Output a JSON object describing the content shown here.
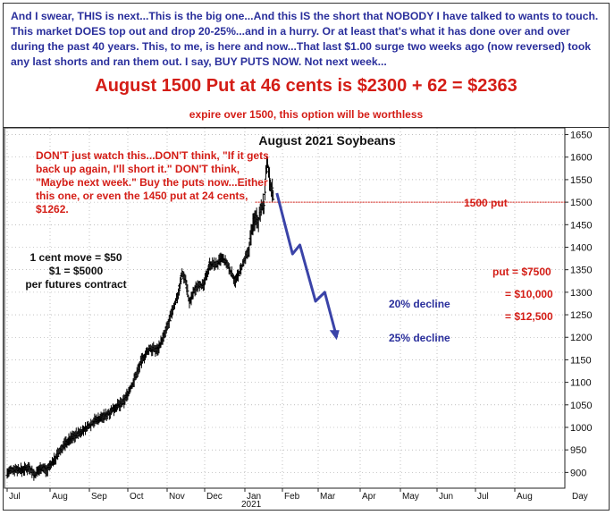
{
  "header": {
    "paragraph": "And I swear, THIS is next...This is the big one...And this IS the short that NOBODY I have talked to wants to touch. This market DOES top out and drop 20-25%...and in a hurry. Or at least that's what it has done over and over during the past 40 years. This, to me, is here and now...That last $1.00 surge two weeks ago (now reversed) took any last shorts and ran them out. I say, BUY PUTS NOW. Not next week...",
    "headline": "August 1500 Put at 46 cents is $2300 + 62 = $2363",
    "subline": "expire over 1500, this option will be worthless"
  },
  "notes": {
    "red": "DON'T just watch this...DON'T think, \"If it gets back up again, I'll short it.\" DON'T think, \"Maybe next week.\" Buy the puts now...Either this one, or even the 1450 put at 24 cents, $1262.",
    "contract_lines": [
      "1 cent move = $50",
      "$1 = $5000",
      "per futures contract"
    ]
  },
  "annotations": {
    "put_line_label": "1500 put",
    "put_value": "put = $7500",
    "value_10k": "= $10,000",
    "value_12_5k": "= $12,500",
    "decline_20": "20% decline",
    "decline_25": "25% decline"
  },
  "colors": {
    "header_text": "#2a2f9c",
    "red": "#d41d16",
    "arrow": "#3a43a8",
    "bars": "#000000"
  },
  "chart_data": {
    "type": "ohlc",
    "title": "August 2021 Soybeans",
    "xlabel": "Day",
    "ylabel": "",
    "ylim": [
      865,
      1665
    ],
    "y_ticks": [
      900,
      950,
      1000,
      1050,
      1100,
      1150,
      1200,
      1250,
      1300,
      1350,
      1400,
      1450,
      1500,
      1550,
      1600,
      1650
    ],
    "x_months": [
      "Jul",
      "Aug",
      "Sep",
      "Oct",
      "Nov",
      "Dec",
      "Jan",
      "Feb",
      "Mar",
      "Apr",
      "May",
      "Jun",
      "Jul",
      "Aug"
    ],
    "year_label": "2021",
    "price_path": [
      [
        0,
        898
      ],
      [
        8,
        908
      ],
      [
        16,
        905
      ],
      [
        24,
        912
      ],
      [
        30,
        893
      ],
      [
        37,
        912
      ],
      [
        43,
        905
      ],
      [
        52,
        930
      ],
      [
        62,
        962
      ],
      [
        72,
        980
      ],
      [
        84,
        995
      ],
      [
        95,
        1015
      ],
      [
        106,
        1025
      ],
      [
        116,
        1042
      ],
      [
        126,
        1055
      ],
      [
        136,
        1095
      ],
      [
        146,
        1148
      ],
      [
        155,
        1175
      ],
      [
        163,
        1172
      ],
      [
        171,
        1205
      ],
      [
        179,
        1255
      ],
      [
        186,
        1298
      ],
      [
        190,
        1342
      ],
      [
        194,
        1328
      ],
      [
        198,
        1275
      ],
      [
        203,
        1302
      ],
      [
        208,
        1320
      ],
      [
        213,
        1312
      ],
      [
        220,
        1362
      ],
      [
        228,
        1362
      ],
      [
        233,
        1375
      ],
      [
        238,
        1365
      ],
      [
        243,
        1345
      ],
      [
        248,
        1325
      ],
      [
        252,
        1342
      ],
      [
        257,
        1365
      ],
      [
        262,
        1390
      ],
      [
        266,
        1440
      ],
      [
        270,
        1470
      ],
      [
        273,
        1458
      ],
      [
        276,
        1495
      ],
      [
        279,
        1490
      ],
      [
        281,
        1560
      ],
      [
        283,
        1588
      ],
      [
        285,
        1548
      ],
      [
        287,
        1535
      ],
      [
        289,
        1515
      ]
    ],
    "projection": [
      [
        293,
        1520
      ],
      [
        310,
        1385
      ],
      [
        318,
        1405
      ],
      [
        335,
        1280
      ],
      [
        345,
        1300
      ],
      [
        358,
        1200
      ]
    ],
    "put_strike": 1500
  }
}
